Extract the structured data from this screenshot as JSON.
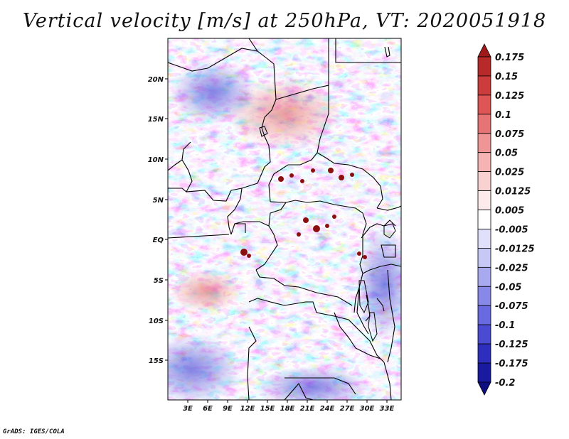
{
  "title": "Vertical velocity [m/s] at 250hPa, VT: 2020051918",
  "footer": "GrADS: IGES/COLA",
  "map": {
    "lat_labels": [
      "20N",
      "15N",
      "10N",
      "5N",
      "EQ",
      "5S",
      "10S",
      "15S"
    ],
    "lon_labels": [
      "3E",
      "6E",
      "9E",
      "12E",
      "15E",
      "18E",
      "21E",
      "24E",
      "27E",
      "30E",
      "33E"
    ]
  },
  "colorbar": {
    "labels": [
      "0.175",
      "0.15",
      "0.125",
      "0.1",
      "0.075",
      "0.05",
      "0.025",
      "0.0125",
      "0.005",
      "-0.005",
      "-0.0125",
      "-0.025",
      "-0.05",
      "-0.075",
      "-0.1",
      "-0.125",
      "-0.175",
      "-0.2"
    ],
    "colors": [
      "#a01a1a",
      "#b82a2a",
      "#cc3c3c",
      "#dd5555",
      "#e77474",
      "#ef9595",
      "#f5b3b3",
      "#fad1d1",
      "#fdeaea",
      "#ffffff",
      "#e0e0fb",
      "#c8c8f6",
      "#a9a9f0",
      "#8888e8",
      "#6a6ae0",
      "#4a4ad2",
      "#2e2ebe",
      "#1a1aa0",
      "#0e0e80"
    ]
  }
}
